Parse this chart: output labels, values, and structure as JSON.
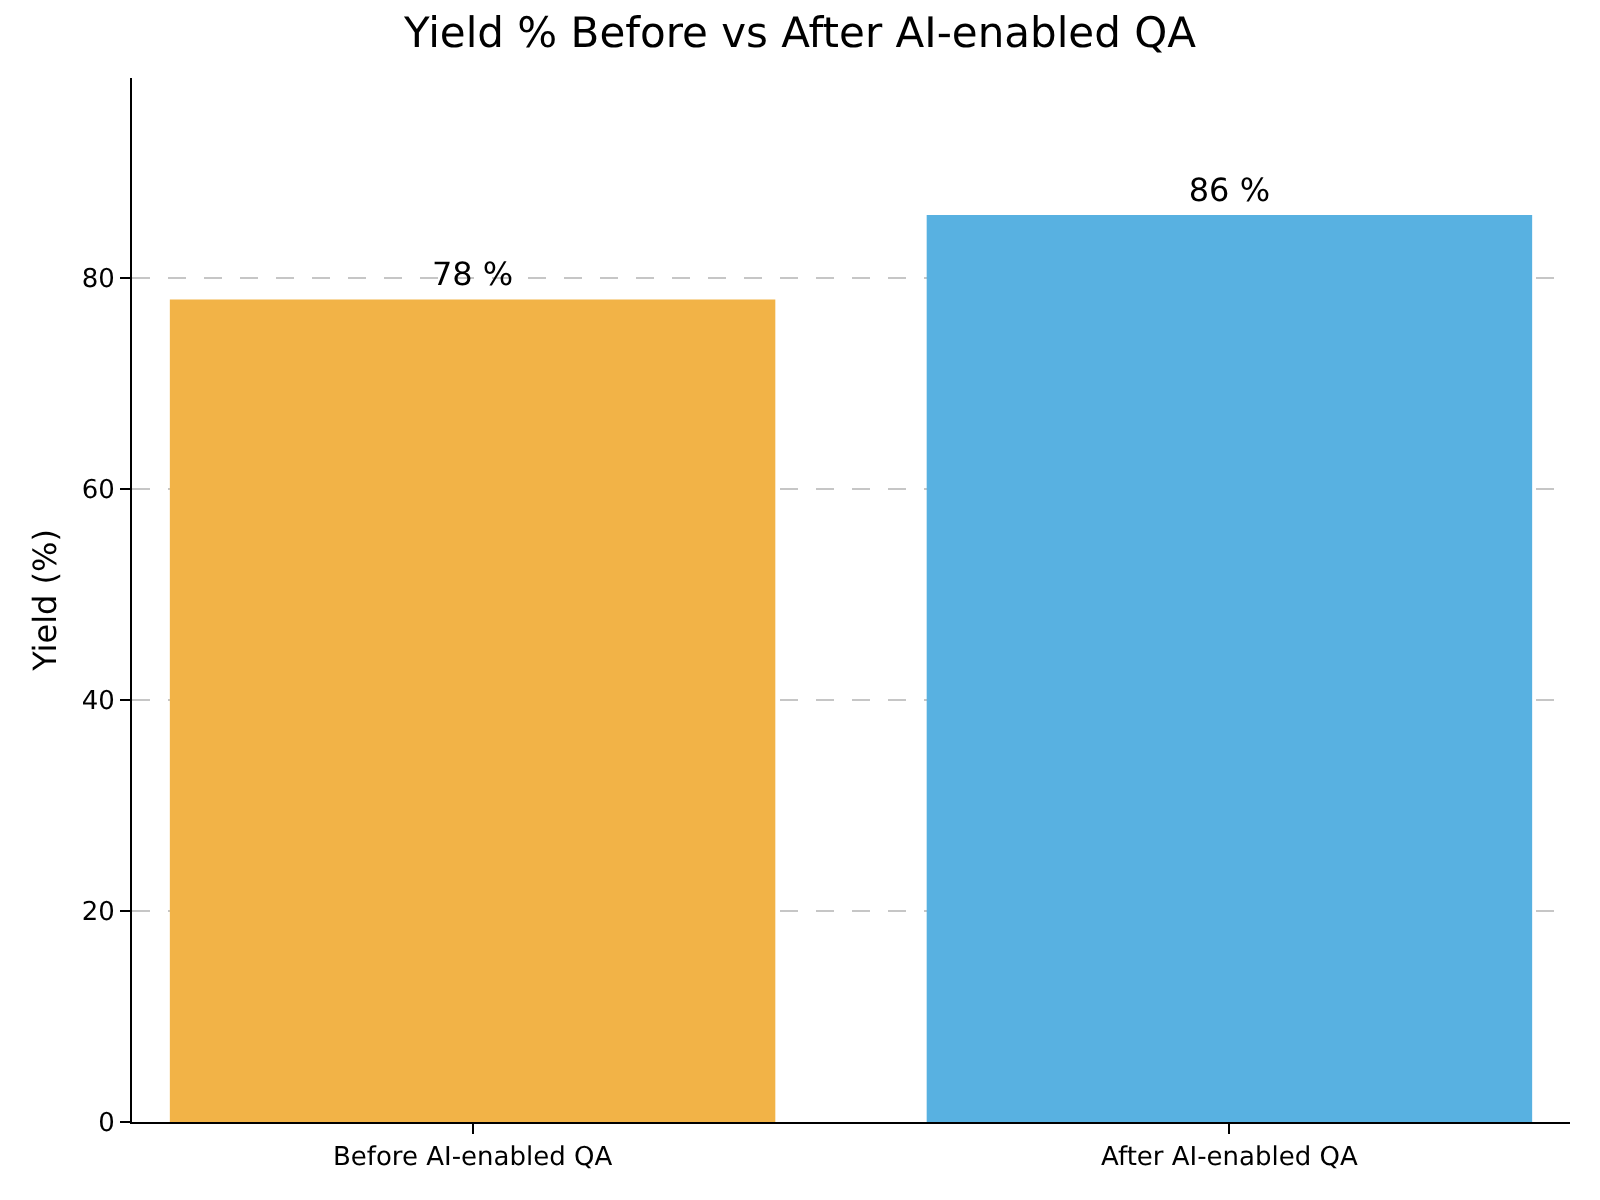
{
  "chart_data": {
    "type": "bar",
    "title": "Yield % Before vs After AI-enabled QA",
    "ylabel": "Yield (%)",
    "categories": [
      "Before AI-enabled QA",
      "After AI-enabled QA"
    ],
    "values": [
      78,
      86
    ],
    "colors": [
      "#f2b347",
      "#58b1e1"
    ],
    "value_labels": [
      "78 %",
      "86 %"
    ],
    "ylim": [
      0,
      99
    ],
    "yticks": [
      0,
      20,
      40,
      60,
      80
    ],
    "grid": "y"
  }
}
